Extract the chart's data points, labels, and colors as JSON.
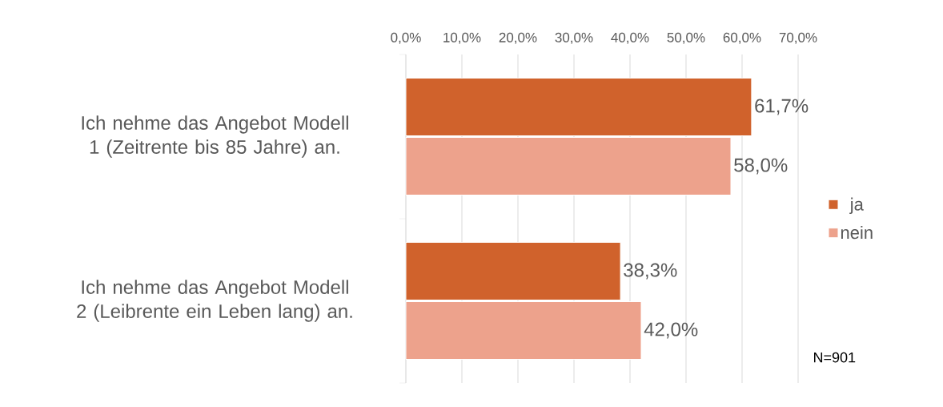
{
  "chart_data": {
    "type": "bar",
    "orientation": "horizontal",
    "categories": [
      "Ich nehme das Angebot Modell 1 (Zeitrente bis 85 Jahre) an.",
      "Ich nehme das Angebot Modell 2 (Leibrente ein Leben lang) an."
    ],
    "series": [
      {
        "name": "ja",
        "color": "#d0622c",
        "values": [
          61.7,
          38.3
        ],
        "value_labels": [
          "61,7%",
          "38,3%"
        ]
      },
      {
        "name": "nein",
        "color": "#eda28c",
        "values": [
          58.0,
          42.0
        ],
        "value_labels": [
          "58,0%",
          "42,0%"
        ]
      }
    ],
    "xlim": [
      0,
      70
    ],
    "xticks": [
      {
        "value": 0,
        "label": "0,0%"
      },
      {
        "value": 10,
        "label": "10,0%"
      },
      {
        "value": 20,
        "label": "20,0%"
      },
      {
        "value": 30,
        "label": "30,0%"
      },
      {
        "value": 40,
        "label": "40,0%"
      },
      {
        "value": 50,
        "label": "50,0%"
      },
      {
        "value": 60,
        "label": "60,0%"
      },
      {
        "value": 70,
        "label": "70,0%"
      }
    ],
    "grid": "x",
    "legend": "right",
    "annotations": [
      "N=901"
    ]
  }
}
